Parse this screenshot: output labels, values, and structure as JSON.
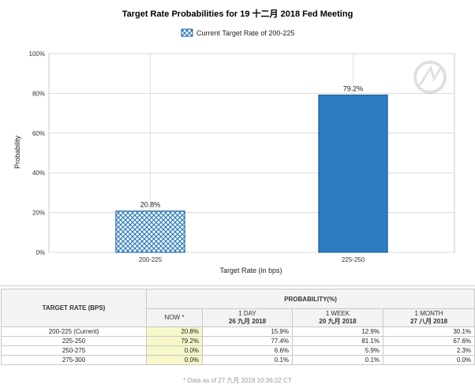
{
  "chart_data": {
    "type": "bar",
    "title": "Target Rate Probabilities for 19 十二月 2018 Fed Meeting",
    "legend": {
      "label": "Current Target Rate of 200-225",
      "position": "top"
    },
    "categories": [
      "200-225",
      "225-250"
    ],
    "values": [
      20.8,
      79.2
    ],
    "data_labels": [
      "20.8%",
      "79.2%"
    ],
    "bar_styles": [
      "hatched",
      "solid"
    ],
    "colors": {
      "hatched": "#2b7bbf",
      "solid": "#2b7bbf"
    },
    "xlabel": "Target Rate (in bps)",
    "ylabel": "Probability",
    "ylim": [
      0,
      100
    ],
    "yticks": [
      "0%",
      "20%",
      "40%",
      "60%",
      "80%",
      "100%"
    ],
    "grid": true
  },
  "table": {
    "col_target": "TARGET RATE (BPS)",
    "col_probability": "PROBABILITY(%)",
    "sub_headers": [
      {
        "label": "NOW *",
        "date": ""
      },
      {
        "label": "1 DAY",
        "date": "26 九月 2018"
      },
      {
        "label": "1 WEEK",
        "date": "20 九月 2018"
      },
      {
        "label": "1 MONTH",
        "date": "27 八月 2018"
      }
    ],
    "rows": [
      {
        "rate": "200-225 (Current)",
        "now": "20.8%",
        "day": "15.9%",
        "week": "12.9%",
        "month": "30.1%"
      },
      {
        "rate": "225-250",
        "now": "79.2%",
        "day": "77.4%",
        "week": "81.1%",
        "month": "67.6%"
      },
      {
        "rate": "250-275",
        "now": "0.0%",
        "day": "6.6%",
        "week": "5.9%",
        "month": "2.3%"
      },
      {
        "rate": "275-300",
        "now": "0.0%",
        "day": "0.1%",
        "week": "0.1%",
        "month": "0.0%"
      }
    ],
    "footnote": "* Data as of 27 九月 2018 10:36:22 CT"
  }
}
